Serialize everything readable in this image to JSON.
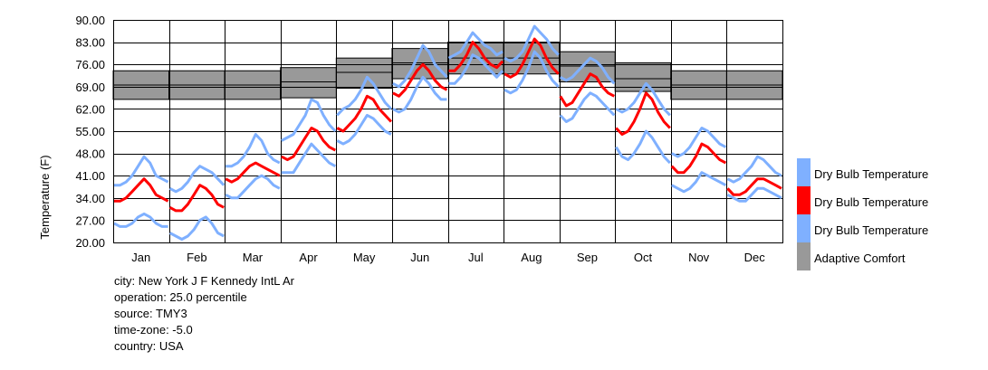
{
  "chart_data": {
    "type": "line",
    "title": "",
    "xlabel": "",
    "ylabel": "Temperature (F)",
    "ylim": [
      20,
      90
    ],
    "yticks": [
      "20.00",
      "27.00",
      "34.00",
      "41.00",
      "48.00",
      "55.00",
      "62.00",
      "69.00",
      "76.00",
      "83.00",
      "90.00"
    ],
    "categories": [
      "Jan",
      "Feb",
      "Mar",
      "Apr",
      "May",
      "Jun",
      "Jul",
      "Aug",
      "Sep",
      "Oct",
      "Nov",
      "Dec"
    ],
    "grid": true,
    "legend_position": "right",
    "legend": [
      {
        "label": "Dry Bulb Temperature",
        "color": "#7fb0ff"
      },
      {
        "label": "Dry Bulb Temperature",
        "color": "#ff0000"
      },
      {
        "label": "Dry Bulb Temperature",
        "color": "#7fb0ff"
      },
      {
        "label": "Adaptive Comfort",
        "color": "#999999"
      }
    ],
    "comfort_band": {
      "color": "#999999",
      "low": [
        65,
        65,
        65,
        65.5,
        68.5,
        71.5,
        73,
        73,
        70.5,
        67.5,
        65,
        65
      ],
      "mid": [
        69.5,
        69.5,
        69.5,
        70.5,
        73.5,
        76.5,
        78,
        78,
        75.5,
        71.5,
        69.5,
        69.5
      ],
      "high": [
        74,
        74,
        74,
        75,
        78,
        81,
        83,
        83,
        80,
        76.5,
        74,
        74
      ]
    },
    "series": [
      {
        "color": "#7fb0ff",
        "role": "upper",
        "values": [
          [
            38,
            38,
            39,
            41,
            44,
            47,
            45,
            41,
            40,
            39
          ],
          [
            37,
            36,
            37,
            39,
            42,
            44,
            43,
            42,
            40,
            38
          ],
          [
            44,
            44,
            45,
            47,
            50,
            54,
            52,
            48,
            46,
            45
          ],
          [
            52,
            53,
            54,
            57,
            60,
            65,
            64,
            60,
            57,
            55
          ],
          [
            60,
            62,
            63,
            65,
            68,
            72,
            70,
            67,
            64,
            62
          ],
          [
            70,
            69,
            71,
            74,
            78,
            82,
            80,
            76,
            74,
            72
          ],
          [
            78,
            79,
            80,
            83,
            86,
            84,
            82,
            81,
            79,
            80
          ],
          [
            78,
            77,
            78,
            80,
            84,
            88,
            86,
            84,
            81,
            79
          ],
          [
            72,
            71,
            72,
            74,
            76,
            78,
            77,
            75,
            72,
            70
          ],
          [
            62,
            61,
            62,
            64,
            67,
            70,
            68,
            65,
            62,
            60
          ],
          [
            48,
            47,
            48,
            50,
            53,
            56,
            55,
            53,
            51,
            50
          ],
          [
            40,
            39,
            40,
            42,
            44,
            47,
            46,
            44,
            42,
            41
          ]
        ]
      },
      {
        "color": "#ff0000",
        "role": "median",
        "values": [
          [
            33,
            33,
            34,
            36,
            38,
            40,
            38,
            35,
            34,
            33
          ],
          [
            31,
            30,
            30,
            32,
            35,
            38,
            37,
            35,
            32,
            31
          ],
          [
            40,
            39,
            40,
            42,
            44,
            45,
            44,
            43,
            42,
            41
          ],
          [
            47,
            46,
            47,
            50,
            53,
            56,
            55,
            52,
            50,
            49
          ],
          [
            56,
            55,
            57,
            59,
            62,
            66,
            65,
            62,
            60,
            58
          ],
          [
            67,
            66,
            68,
            71,
            74,
            76,
            74,
            71,
            69,
            68
          ],
          [
            74,
            74,
            76,
            79,
            83,
            81,
            78,
            76,
            75,
            77
          ],
          [
            73,
            72,
            73,
            76,
            80,
            84,
            82,
            78,
            75,
            73
          ],
          [
            66,
            63,
            64,
            67,
            70,
            73,
            72,
            69,
            67,
            66
          ],
          [
            56,
            54,
            55,
            58,
            62,
            67,
            65,
            61,
            58,
            56
          ],
          [
            44,
            42,
            42,
            44,
            47,
            51,
            50,
            48,
            46,
            45
          ],
          [
            37,
            35,
            35,
            36,
            38,
            40,
            40,
            39,
            38,
            37
          ]
        ]
      },
      {
        "color": "#7fb0ff",
        "role": "lower",
        "values": [
          [
            26,
            25,
            25,
            26,
            28,
            29,
            28,
            26,
            25,
            25
          ],
          [
            23,
            22,
            21,
            22,
            24,
            27,
            28,
            26,
            23,
            22
          ],
          [
            35,
            34,
            34,
            36,
            38,
            40,
            41,
            40,
            38,
            37
          ],
          [
            42,
            42,
            42,
            45,
            48,
            51,
            49,
            47,
            45,
            44
          ],
          [
            52,
            51,
            52,
            54,
            57,
            60,
            59,
            57,
            55,
            54
          ],
          [
            62,
            61,
            62,
            65,
            69,
            72,
            70,
            67,
            65,
            65
          ],
          [
            70,
            70,
            72,
            75,
            79,
            78,
            76,
            74,
            72,
            74
          ],
          [
            68,
            67,
            68,
            71,
            75,
            80,
            78,
            74,
            71,
            69
          ],
          [
            60,
            58,
            59,
            62,
            65,
            67,
            66,
            64,
            62,
            60
          ],
          [
            50,
            47,
            46,
            48,
            51,
            55,
            53,
            50,
            47,
            45
          ],
          [
            38,
            37,
            36,
            37,
            39,
            42,
            41,
            40,
            39,
            38
          ],
          [
            35,
            34,
            33,
            33,
            35,
            37,
            37,
            36,
            35,
            34
          ]
        ]
      }
    ]
  },
  "info": {
    "city": "city: New York J F Kennedy IntL Ar",
    "operation": "operation: 25.0 percentile",
    "source": "source: TMY3",
    "timezone": "time-zone: -5.0",
    "country": "country: USA"
  }
}
